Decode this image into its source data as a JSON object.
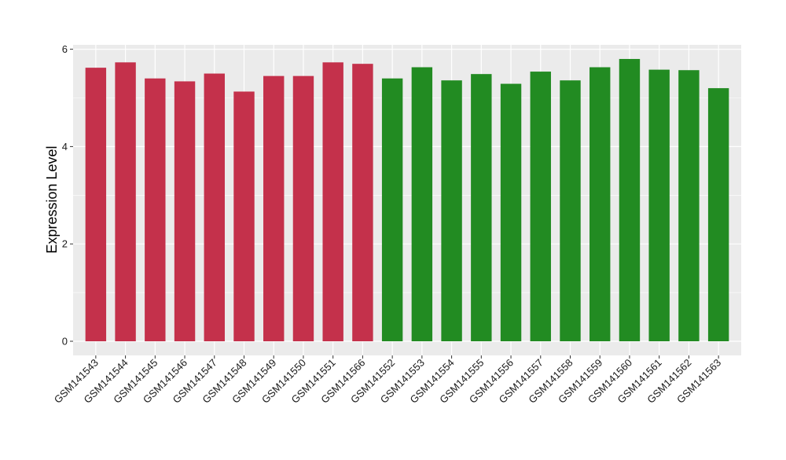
{
  "chart_data": {
    "type": "bar",
    "title": "",
    "xlabel": "",
    "ylabel": "Expression Level",
    "ylim": [
      0,
      6.4
    ],
    "y_ticks": [
      "0",
      "2",
      "4",
      "6"
    ],
    "grid": true,
    "legend": "none",
    "categories": [
      "GSM141543",
      "GSM141544",
      "GSM141545",
      "GSM141546",
      "GSM141547",
      "GSM141548",
      "GSM141549",
      "GSM141550",
      "GSM141551",
      "GSM141566",
      "GSM141552",
      "GSM141553",
      "GSM141554",
      "GSM141555",
      "GSM141556",
      "GSM141557",
      "GSM141558",
      "GSM141559",
      "GSM141560",
      "GSM141561",
      "GSM141562",
      "GSM141563"
    ],
    "values": [
      5.62,
      5.73,
      5.4,
      5.34,
      5.5,
      5.13,
      5.45,
      5.45,
      5.73,
      5.7,
      5.4,
      5.63,
      5.36,
      5.49,
      5.29,
      5.54,
      5.36,
      5.63,
      5.8,
      5.58,
      5.57,
      5.2
    ],
    "bar_colors": [
      "#c4314b",
      "#c4314b",
      "#c4314b",
      "#c4314b",
      "#c4314b",
      "#c4314b",
      "#c4314b",
      "#c4314b",
      "#c4314b",
      "#c4314b",
      "#228b22",
      "#228b22",
      "#228b22",
      "#228b22",
      "#228b22",
      "#228b22",
      "#228b22",
      "#228b22",
      "#228b22",
      "#228b22",
      "#228b22",
      "#228b22"
    ],
    "panel_background": "#ebebeb",
    "grid_color": "#ffffff"
  }
}
